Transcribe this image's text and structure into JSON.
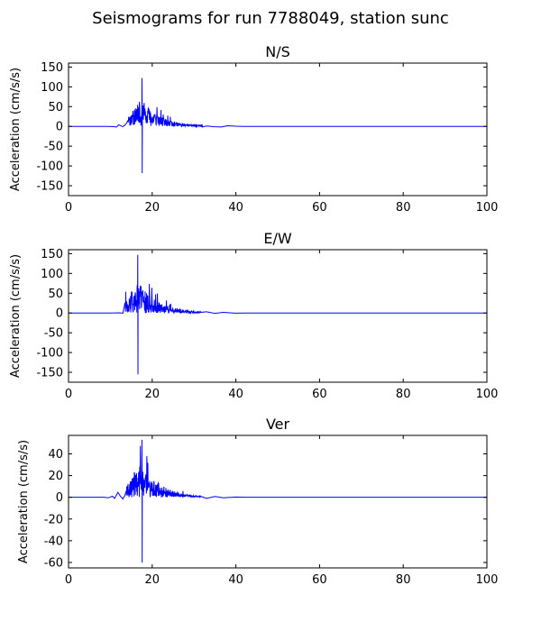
{
  "figure": {
    "title": "Seismograms for run 7788049, station sunc"
  },
  "colors": {
    "trace": "#0000ff",
    "axes": "#000000",
    "background": "#ffffff"
  },
  "chart_data": [
    {
      "type": "line",
      "title": "N/S",
      "xlabel": "",
      "ylabel": "Acceleration (cm/s/s)",
      "xlim": [
        0,
        100
      ],
      "ylim": [
        -175,
        160
      ],
      "xticks": [
        0,
        20,
        40,
        60,
        80,
        100
      ],
      "yticks": [
        150,
        100,
        50,
        0,
        -50,
        -100,
        -150
      ],
      "grid": false,
      "series": [
        {
          "onset": 14.0,
          "peak_time": 17.5,
          "end": 32.0,
          "max": 122,
          "min": -118,
          "precursor": [
            [
              9.0,
              0
            ],
            [
              10.5,
              -0.5
            ],
            [
              11.5,
              -1.5
            ],
            [
              12.0,
              4
            ],
            [
              12.5,
              1.5
            ],
            [
              13.0,
              -0.5
            ],
            [
              13.5,
              3
            ]
          ],
          "coda": [
            [
              32.0,
              -1.5
            ],
            [
              33.0,
              1.0
            ],
            [
              35.0,
              -1.0
            ],
            [
              36.5,
              -1.5
            ],
            [
              38.0,
              1.5
            ],
            [
              40.0,
              0.5
            ],
            [
              42.0,
              0
            ]
          ]
        }
      ]
    },
    {
      "type": "line",
      "title": "E/W",
      "xlabel": "",
      "ylabel": "Acceleration (cm/s/s)",
      "xlim": [
        0,
        100
      ],
      "ylim": [
        -175,
        160
      ],
      "xticks": [
        0,
        20,
        40,
        60,
        80,
        100
      ],
      "yticks": [
        150,
        100,
        50,
        0,
        -50,
        -100,
        -150
      ],
      "grid": false,
      "series": [
        {
          "onset": 13.5,
          "peak_time": 16.5,
          "end": 31.5,
          "max": 147,
          "min": -155,
          "precursor": [
            [
              10.0,
              0
            ],
            [
              12.0,
              0.5
            ],
            [
              13.0,
              -0.5
            ]
          ],
          "coda": [
            [
              31.5,
              1.5
            ],
            [
              33.0,
              3.0
            ],
            [
              35.0,
              -1.0
            ],
            [
              37.0,
              1.5
            ],
            [
              40.0,
              -0.5
            ],
            [
              42.0,
              0
            ]
          ]
        }
      ]
    },
    {
      "type": "line",
      "title": "Ver",
      "xlabel": "",
      "ylabel": "Acceleration (cm/s/s)",
      "xlim": [
        0,
        100
      ],
      "ylim": [
        -65,
        57
      ],
      "xticks": [
        0,
        20,
        40,
        60,
        80,
        100
      ],
      "yticks": [
        40,
        20,
        0,
        -20,
        -40,
        -60
      ],
      "grid": false,
      "series": [
        {
          "onset": 13.8,
          "peak_time": 17.5,
          "end": 31.5,
          "max": 53,
          "min": -60,
          "precursor": [
            [
              8.5,
              0
            ],
            [
              9.5,
              -0.5
            ],
            [
              10.5,
              1.0
            ],
            [
              11.0,
              -1.0
            ],
            [
              11.8,
              4.5
            ],
            [
              12.4,
              1.0
            ],
            [
              13.0,
              -1.5
            ],
            [
              13.5,
              2.0
            ]
          ],
          "coda": [
            [
              31.5,
              1.0
            ],
            [
              33.0,
              -1.0
            ],
            [
              35.0,
              0.8
            ],
            [
              37.0,
              -0.5
            ],
            [
              40.0,
              0.3
            ],
            [
              42.0,
              0
            ]
          ]
        }
      ]
    }
  ]
}
